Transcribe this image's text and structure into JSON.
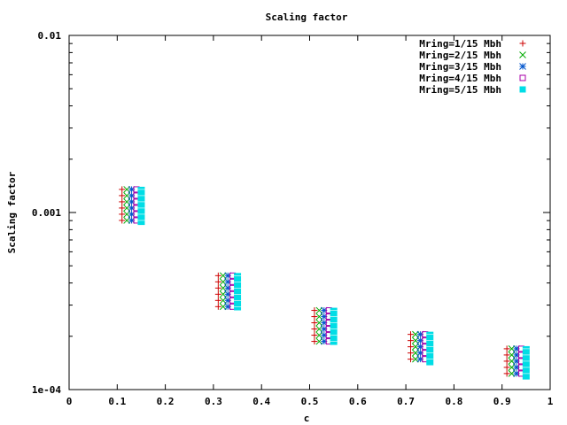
{
  "chart_data": {
    "type": "scatter",
    "title": "Scaling factor",
    "xlabel": "c",
    "ylabel": "Scaling factor",
    "xlim": [
      0,
      1
    ],
    "ylim": [
      0.0001,
      0.01
    ],
    "yscale": "log",
    "grid": false,
    "legend_position": "top-right",
    "x_ticks": [
      "0",
      "0.1",
      "0.2",
      "0.3",
      "0.4",
      "0.5",
      "0.6",
      "0.7",
      "0.8",
      "0.9",
      "1"
    ],
    "y_ticks": [
      "1e-04",
      "0.001",
      "0.01"
    ],
    "series": [
      {
        "name": "Mring=1/15 Mbh",
        "marker": "plus",
        "color": "#cc0000",
        "x": [
          0.11,
          0.31,
          0.51,
          0.71,
          0.91
        ],
        "y_min": [
          0.00088,
          0.00029,
          0.000185,
          0.000142,
          0.000118
        ],
        "y_max": [
          0.00135,
          0.00044,
          0.00028,
          0.000205,
          0.00017
        ]
      },
      {
        "name": "Mring=2/15 Mbh",
        "marker": "cross",
        "color": "#00aa00",
        "x": [
          0.12,
          0.32,
          0.52,
          0.72,
          0.92
        ],
        "y_min": [
          0.00088,
          0.00029,
          0.000185,
          0.000142,
          0.000118
        ],
        "y_max": [
          0.00135,
          0.00044,
          0.00028,
          0.000205,
          0.00017
        ]
      },
      {
        "name": "Mring=3/15 Mbh",
        "marker": "star",
        "color": "#0055cc",
        "x": [
          0.13,
          0.33,
          0.53,
          0.73,
          0.93
        ],
        "y_min": [
          0.00088,
          0.00029,
          0.000185,
          0.000142,
          0.000118
        ],
        "y_max": [
          0.00135,
          0.00044,
          0.00028,
          0.000205,
          0.00017
        ]
      },
      {
        "name": "Mring=4/15 Mbh",
        "marker": "open-square",
        "color": "#aa00aa",
        "x": [
          0.14,
          0.34,
          0.54,
          0.74,
          0.94
        ],
        "y_min": [
          0.00088,
          0.00029,
          0.000185,
          0.000142,
          0.000118
        ],
        "y_max": [
          0.00135,
          0.00044,
          0.00028,
          0.000205,
          0.00017
        ]
      },
      {
        "name": "Mring=5/15 Mbh",
        "marker": "filled-square",
        "color": "#00dde6",
        "x": [
          0.15,
          0.35,
          0.55,
          0.75,
          0.95
        ],
        "y_min": [
          0.00088,
          0.00029,
          0.000185,
          0.000142,
          0.000118
        ],
        "y_max": [
          0.00135,
          0.00044,
          0.00028,
          0.000205,
          0.00017
        ]
      }
    ]
  }
}
